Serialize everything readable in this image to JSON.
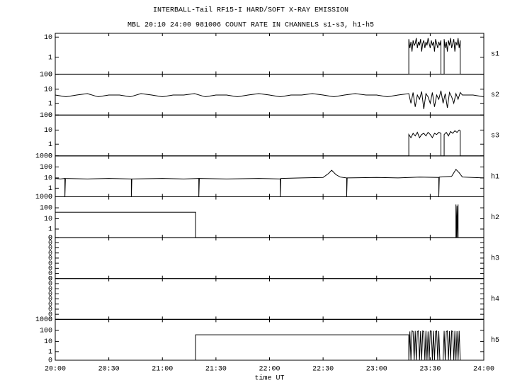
{
  "title": "INTERBALL-Tail RF15-I HARD/SOFT X-RAY EMISSION",
  "subtitle": "MBL 20:10 24:00 981006  COUNT RATE IN CHANNELS s1-s3, h1-h5",
  "chart_data": [
    {
      "type": "line",
      "name": "s1",
      "yscale": "log",
      "ylim": [
        0,
        15
      ],
      "yticks": [
        0,
        1,
        10
      ],
      "x": [
        20,
        23.3,
        23.3,
        23.31,
        23.32,
        23.33,
        23.34,
        23.35,
        23.36,
        23.37,
        23.38,
        23.39,
        23.4,
        23.41,
        23.42,
        23.43,
        23.44,
        23.45,
        23.46,
        23.47,
        23.48,
        23.49,
        23.5,
        23.51,
        23.52,
        23.53,
        23.54,
        23.55,
        23.56,
        23.57,
        23.58,
        23.59,
        23.6,
        23.6,
        23.63,
        23.63,
        23.64,
        23.65,
        23.66,
        23.67,
        23.68,
        23.69,
        23.7,
        23.71,
        23.72,
        23.73,
        23.74,
        23.75,
        23.76,
        23.77,
        23.78,
        23.78,
        24
      ],
      "values": [
        0,
        0,
        8,
        3,
        6,
        2,
        7,
        4,
        5,
        9,
        3,
        6,
        4,
        8,
        2,
        5,
        7,
        3,
        6,
        4,
        9,
        5,
        3,
        7,
        4,
        6,
        2,
        8,
        5,
        3,
        6,
        4,
        7,
        0,
        0,
        8,
        3,
        6,
        2,
        7,
        4,
        9,
        3,
        5,
        8,
        2,
        6,
        4,
        9,
        3,
        7,
        0,
        0
      ]
    },
    {
      "type": "line",
      "name": "s2",
      "yscale": "log",
      "ylim": [
        0,
        100
      ],
      "yticks": [
        0,
        1,
        10,
        100
      ],
      "x": [
        20,
        20.1,
        20.2,
        20.3,
        20.4,
        20.5,
        20.6,
        20.7,
        20.8,
        20.9,
        21,
        21.1,
        21.2,
        21.3,
        21.4,
        21.5,
        21.6,
        21.7,
        21.8,
        21.9,
        22,
        22.1,
        22.2,
        22.3,
        22.4,
        22.5,
        22.6,
        22.7,
        22.8,
        22.9,
        23,
        23.1,
        23.2,
        23.3,
        23.32,
        23.34,
        23.36,
        23.38,
        23.4,
        23.42,
        23.44,
        23.46,
        23.48,
        23.5,
        23.52,
        23.54,
        23.56,
        23.58,
        23.6,
        23.62,
        23.64,
        23.66,
        23.68,
        23.7,
        23.72,
        23.74,
        23.76,
        23.78,
        23.8,
        23.9,
        24
      ],
      "values": [
        4,
        3,
        4,
        5,
        3,
        4,
        4,
        3,
        5,
        4,
        3,
        4,
        4,
        5,
        3,
        4,
        4,
        3,
        4,
        5,
        4,
        3,
        4,
        4,
        5,
        4,
        3,
        4,
        5,
        4,
        4,
        3,
        4,
        5,
        1,
        6,
        0.5,
        4,
        2,
        7,
        0.3,
        5,
        3,
        1,
        6,
        0.5,
        4,
        2,
        8,
        1,
        5,
        0.4,
        6,
        3,
        1,
        5,
        2,
        6,
        4,
        4,
        3
      ]
    },
    {
      "type": "line",
      "name": "s3",
      "yscale": "log",
      "ylim": [
        0,
        100
      ],
      "yticks": [
        0,
        1,
        10,
        100
      ],
      "x": [
        20,
        23.3,
        23.3,
        23.32,
        23.34,
        23.36,
        23.38,
        23.4,
        23.42,
        23.44,
        23.46,
        23.48,
        23.5,
        23.52,
        23.54,
        23.56,
        23.58,
        23.6,
        23.6,
        23.63,
        23.63,
        23.65,
        23.67,
        23.69,
        23.71,
        23.73,
        23.75,
        23.77,
        23.78,
        23.78,
        24
      ],
      "values": [
        0,
        0,
        5,
        3,
        6,
        4,
        7,
        3,
        5,
        6,
        4,
        7,
        5,
        3,
        6,
        5,
        7,
        6,
        0,
        0,
        5,
        7,
        4,
        8,
        6,
        9,
        7,
        10,
        9,
        0,
        0
      ]
    },
    {
      "type": "line",
      "name": "h1",
      "yscale": "log",
      "ylim": [
        0,
        1000
      ],
      "yticks": [
        0,
        1,
        10,
        100,
        1000
      ],
      "x": [
        20,
        20.05,
        20.09,
        20.09,
        20.095,
        20.3,
        20.5,
        20.71,
        20.71,
        20.715,
        21,
        21.2,
        21.34,
        21.34,
        21.345,
        21.6,
        21.9,
        22.1,
        22.1,
        22.105,
        22.3,
        22.5,
        22.55,
        22.58,
        22.62,
        22.66,
        22.72,
        22.72,
        22.725,
        23,
        23.2,
        23.4,
        23.58,
        23.58,
        23.585,
        23.7,
        23.74,
        23.77,
        23.8,
        24
      ],
      "values": [
        9,
        8,
        9,
        0,
        9,
        8,
        9,
        8,
        0,
        8,
        9,
        8,
        9,
        0,
        9,
        8,
        9,
        8,
        0,
        9,
        10,
        11,
        25,
        50,
        20,
        12,
        10,
        0,
        10,
        11,
        10,
        12,
        11,
        0,
        12,
        14,
        60,
        30,
        12,
        10
      ]
    },
    {
      "type": "line",
      "name": "h2",
      "yscale": "log",
      "ylim": [
        0,
        1000
      ],
      "yticks": [
        0,
        1,
        10,
        100,
        1000
      ],
      "x": [
        20,
        21.31,
        21.31,
        23.74,
        23.74,
        23.745,
        23.75,
        23.755,
        23.76,
        23.76,
        24
      ],
      "values": [
        40,
        40,
        0,
        0,
        200,
        0,
        150,
        0,
        200,
        0,
        0
      ]
    },
    {
      "type": "line",
      "name": "h3",
      "yscale": "linear",
      "ylim": [
        0,
        1
      ],
      "yticks": [
        {
          "value": 0,
          "label": "0"
        },
        {
          "value": 0.125,
          "label": "0"
        },
        {
          "value": 0.25,
          "label": "0"
        },
        {
          "value": 0.375,
          "label": "0"
        },
        {
          "value": 0.5,
          "label": "0"
        },
        {
          "value": 0.625,
          "label": "0"
        },
        {
          "value": 0.75,
          "label": "0"
        },
        {
          "value": 0.875,
          "label": "0"
        },
        {
          "value": 1,
          "label": "0"
        }
      ],
      "x": [
        20,
        24
      ],
      "values": [
        0,
        0
      ]
    },
    {
      "type": "line",
      "name": "h4",
      "yscale": "linear",
      "ylim": [
        0,
        1
      ],
      "yticks": [
        {
          "value": 0,
          "label": "0"
        },
        {
          "value": 0.125,
          "label": "0"
        },
        {
          "value": 0.25,
          "label": "0"
        },
        {
          "value": 0.375,
          "label": "0"
        },
        {
          "value": 0.5,
          "label": "0"
        },
        {
          "value": 0.625,
          "label": "0"
        },
        {
          "value": 0.75,
          "label": "0"
        },
        {
          "value": 0.875,
          "label": "0"
        },
        {
          "value": 1,
          "label": "0"
        }
      ],
      "x": [
        20,
        24
      ],
      "values": [
        0,
        0
      ]
    },
    {
      "type": "line",
      "name": "h5",
      "yscale": "log",
      "ylim": [
        0,
        1000
      ],
      "yticks": [
        0,
        1,
        10,
        100,
        1000
      ],
      "xlabel": "time UT",
      "xlim": [
        20,
        24
      ],
      "xticks": [
        {
          "value": 20,
          "label": "20:00"
        },
        {
          "value": 20.5,
          "label": "20:30"
        },
        {
          "value": 21,
          "label": "21:00"
        },
        {
          "value": 21.5,
          "label": "21:30"
        },
        {
          "value": 22,
          "label": "22:00"
        },
        {
          "value": 22.5,
          "label": "22:30"
        },
        {
          "value": 23,
          "label": "23:00"
        },
        {
          "value": 23.5,
          "label": "23:30"
        },
        {
          "value": 24,
          "label": "24:00"
        }
      ],
      "x": [
        20,
        21.31,
        21.31,
        23.3,
        23.3,
        23.31,
        23.32,
        23.33,
        23.34,
        23.35,
        23.36,
        23.37,
        23.38,
        23.39,
        23.4,
        23.41,
        23.42,
        23.43,
        23.44,
        23.45,
        23.46,
        23.47,
        23.48,
        23.49,
        23.5,
        23.51,
        23.52,
        23.53,
        23.54,
        23.55,
        23.56,
        23.57,
        23.58,
        23.59,
        23.6,
        23.62,
        23.63,
        23.64,
        23.65,
        23.66,
        23.67,
        23.68,
        23.69,
        23.7,
        23.71,
        23.72,
        23.73,
        23.74,
        23.75,
        23.76,
        23.77,
        23.78,
        24
      ],
      "values": [
        0,
        0,
        40,
        40,
        0,
        80,
        0,
        90,
        80,
        0,
        90,
        0,
        80,
        90,
        0,
        85,
        0,
        90,
        80,
        0,
        90,
        0,
        80,
        0,
        90,
        85,
        0,
        90,
        0,
        80,
        90,
        0,
        85,
        0,
        0,
        0,
        90,
        0,
        80,
        90,
        0,
        85,
        0,
        90,
        80,
        0,
        90,
        0,
        85,
        0,
        90,
        0,
        0
      ]
    }
  ]
}
